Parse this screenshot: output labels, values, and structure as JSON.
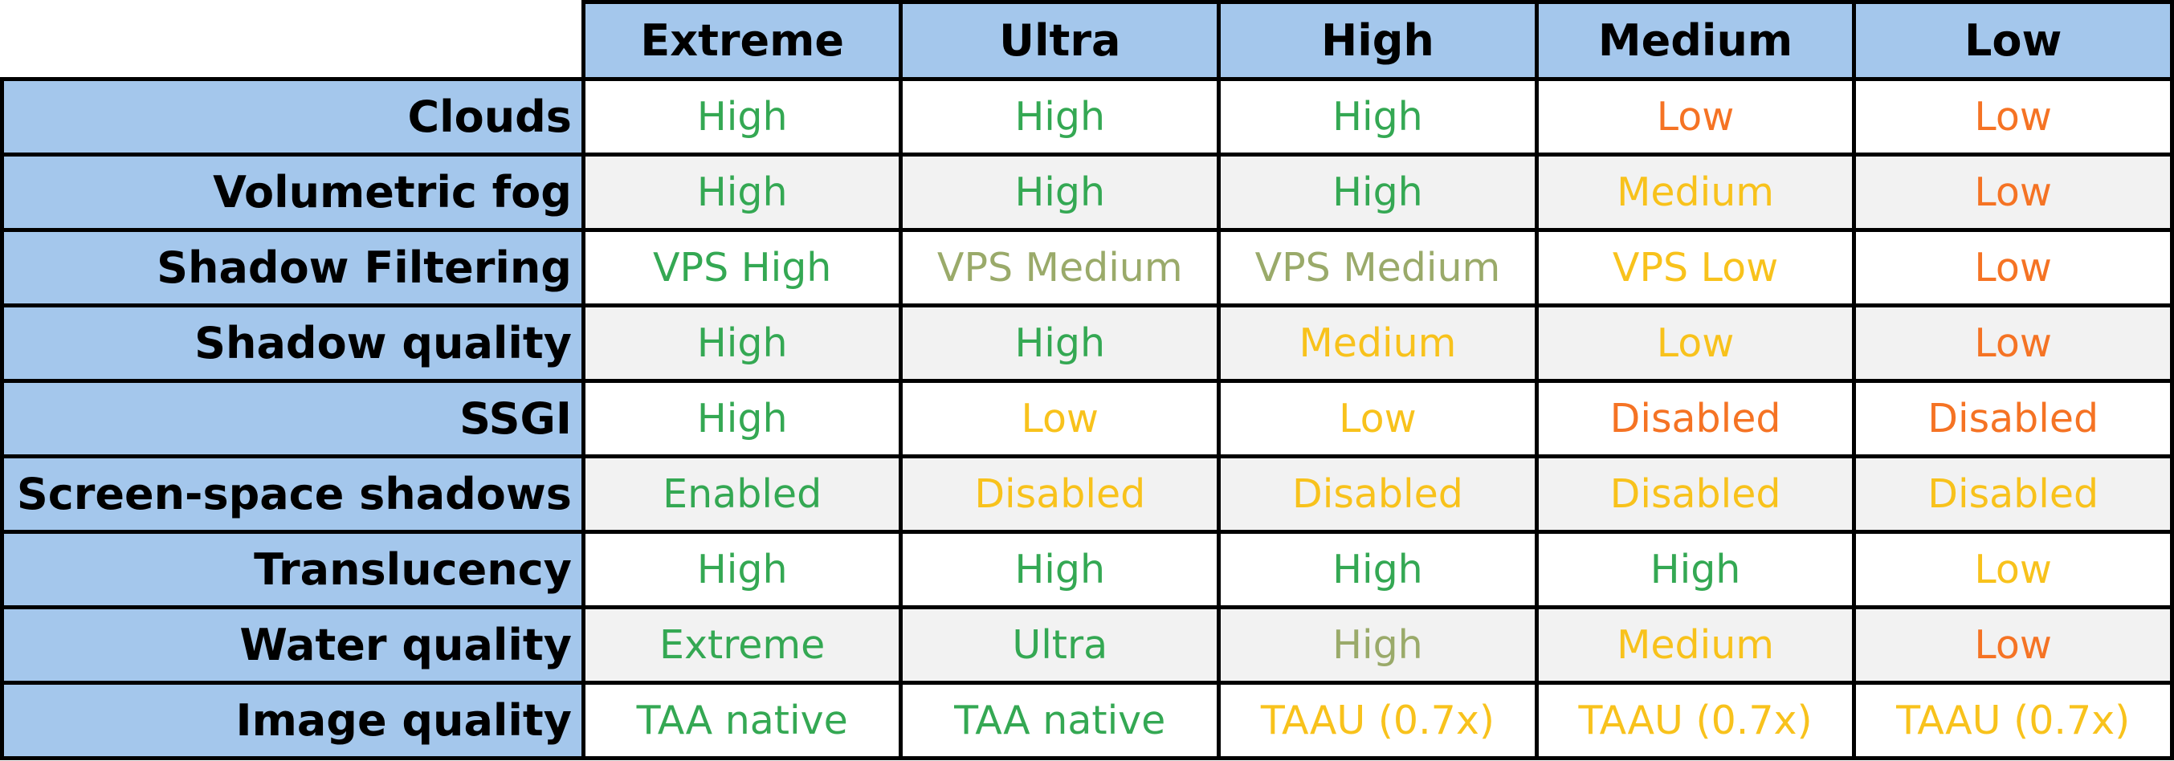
{
  "colors": {
    "header_bg": "#a4c7ec",
    "row_alt_bg": "#f2f2f2",
    "border": "#000000",
    "levels": {
      "high": "#34a853",
      "mid": "#9aaa6a",
      "medium": "#f8c21c",
      "low": "#f57324"
    }
  },
  "table": {
    "columns": [
      "Extreme",
      "Ultra",
      "High",
      "Medium",
      "Low"
    ],
    "rows": [
      {
        "label": "Clouds",
        "values": [
          "High",
          "High",
          "High",
          "Low",
          "Low"
        ],
        "levels": [
          "high",
          "high",
          "high",
          "low",
          "low"
        ]
      },
      {
        "label": "Volumetric fog",
        "values": [
          "High",
          "High",
          "High",
          "Medium",
          "Low"
        ],
        "levels": [
          "high",
          "high",
          "high",
          "medium",
          "low"
        ]
      },
      {
        "label": "Shadow Filtering",
        "values": [
          "VPS High",
          "VPS Medium",
          "VPS Medium",
          "VPS Low",
          "Low"
        ],
        "levels": [
          "high",
          "mid",
          "mid",
          "medium",
          "low"
        ]
      },
      {
        "label": "Shadow quality",
        "values": [
          "High",
          "High",
          "Medium",
          "Low",
          "Low"
        ],
        "levels": [
          "high",
          "high",
          "medium",
          "medium",
          "low"
        ]
      },
      {
        "label": "SSGI",
        "values": [
          "High",
          "Low",
          "Low",
          "Disabled",
          "Disabled"
        ],
        "levels": [
          "high",
          "medium",
          "medium",
          "low",
          "low"
        ]
      },
      {
        "label": "Screen-space shadows",
        "values": [
          "Enabled",
          "Disabled",
          "Disabled",
          "Disabled",
          "Disabled"
        ],
        "levels": [
          "high",
          "medium",
          "medium",
          "medium",
          "medium"
        ]
      },
      {
        "label": "Translucency",
        "values": [
          "High",
          "High",
          "High",
          "High",
          "Low"
        ],
        "levels": [
          "high",
          "high",
          "high",
          "high",
          "medium"
        ]
      },
      {
        "label": "Water quality",
        "values": [
          "Extreme",
          "Ultra",
          "High",
          "Medium",
          "Low"
        ],
        "levels": [
          "high",
          "high",
          "mid",
          "medium",
          "low"
        ]
      },
      {
        "label": "Image quality",
        "values": [
          "TAA native",
          "TAA native",
          "TAAU (0.7x)",
          "TAAU (0.7x)",
          "TAAU (0.7x)"
        ],
        "levels": [
          "high",
          "high",
          "medium",
          "medium",
          "medium"
        ]
      }
    ]
  }
}
